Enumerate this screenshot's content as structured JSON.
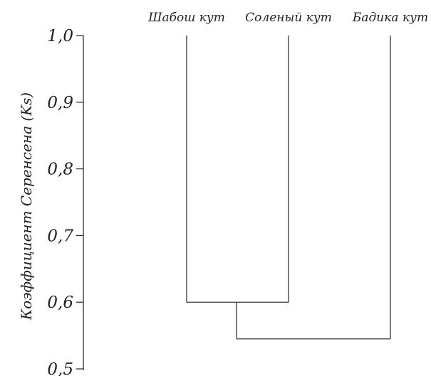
{
  "chart_data": {
    "type": "dendrogram",
    "ylabel": "Коэффициент Серенсена (Ks)",
    "ylim": [
      0.5,
      1.0
    ],
    "y_ticks": [
      1.0,
      0.9,
      0.8,
      0.7,
      0.6,
      0.5
    ],
    "y_tick_labels": [
      "1,0",
      "0,9",
      "0,8",
      "0,7",
      "0,6",
      "0,5"
    ],
    "leaves": [
      "Шабош кут",
      "Соленый кут",
      "Бадика кут"
    ],
    "merges": [
      {
        "left": "Шабош кут",
        "right": "Соленый кут",
        "height": 0.6
      },
      {
        "left": "Шабош кут + Соленый кут",
        "right": "Бадика кут",
        "height": 0.545
      }
    ],
    "grid": false
  },
  "colors": {
    "line": "#222222",
    "text": "#222222",
    "background": "#ffffff"
  }
}
